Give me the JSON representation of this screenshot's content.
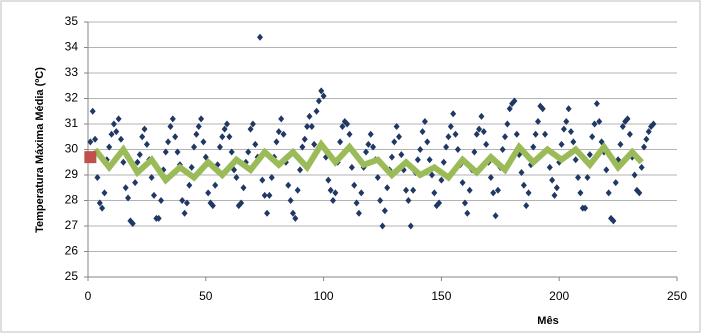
{
  "chart_data": {
    "type": "scatter",
    "ylabel": "Temperatura Máxima Média (ºC)",
    "xlabel": "Mês",
    "xlim": [
      0,
      250
    ],
    "xticks": [
      0,
      50,
      100,
      150,
      200,
      250
    ],
    "ylim": [
      25,
      35
    ],
    "yticks": [
      25,
      26,
      27,
      28,
      29,
      30,
      31,
      32,
      33,
      34,
      35
    ],
    "grid": true,
    "series": [
      {
        "color": "#1f3864",
        "style": "marker",
        "marker": "diamond",
        "x": [
          1,
          2,
          3,
          4,
          5,
          6,
          7,
          8,
          9,
          10,
          11,
          12,
          13,
          14,
          15,
          16,
          17,
          18,
          19,
          20,
          21,
          22,
          23,
          24,
          25,
          26,
          27,
          28,
          29,
          30,
          31,
          32,
          33,
          34,
          35,
          36,
          37,
          38,
          39,
          40,
          41,
          42,
          43,
          44,
          45,
          46,
          47,
          48,
          49,
          50,
          51,
          52,
          53,
          54,
          55,
          56,
          57,
          58,
          59,
          60,
          61,
          62,
          63,
          64,
          65,
          66,
          67,
          68,
          69,
          70,
          71,
          72,
          73,
          74,
          75,
          76,
          77,
          78,
          79,
          80,
          81,
          82,
          83,
          84,
          85,
          86,
          87,
          88,
          89,
          90,
          91,
          92,
          93,
          94,
          95,
          96,
          97,
          98,
          99,
          100,
          101,
          102,
          103,
          104,
          105,
          106,
          107,
          108,
          109,
          110,
          111,
          112,
          113,
          114,
          115,
          116,
          117,
          118,
          119,
          120,
          121,
          122,
          123,
          124,
          125,
          126,
          127,
          128,
          129,
          130,
          131,
          132,
          133,
          134,
          135,
          136,
          137,
          138,
          139,
          140,
          141,
          142,
          143,
          144,
          145,
          146,
          147,
          148,
          149,
          150,
          151,
          152,
          153,
          154,
          155,
          156,
          157,
          158,
          159,
          160,
          161,
          162,
          163,
          164,
          165,
          166,
          167,
          168,
          169,
          170,
          171,
          172,
          173,
          174,
          175,
          176,
          177,
          178,
          179,
          180,
          181,
          182,
          183,
          184,
          185,
          186,
          187,
          188,
          189,
          190,
          191,
          192,
          193,
          194,
          195,
          196,
          197,
          198,
          199,
          200,
          201,
          202,
          203,
          204,
          205,
          206,
          207,
          208,
          209,
          210,
          211,
          212,
          213,
          214,
          215,
          216,
          217,
          218,
          219,
          220,
          221,
          222,
          223,
          224,
          225,
          226,
          227,
          228,
          229,
          230,
          231,
          232,
          233,
          234,
          235,
          236,
          237,
          238,
          239,
          240
        ],
        "values": [
          30.3,
          31.5,
          30.4,
          28.9,
          27.9,
          27.7,
          28.3,
          29.6,
          30.1,
          30.6,
          31.0,
          30.7,
          31.2,
          30.4,
          29.5,
          28.5,
          28.1,
          27.2,
          27.1,
          28.7,
          29.5,
          29.8,
          30.5,
          30.8,
          30.2,
          29.6,
          28.9,
          28.2,
          27.3,
          27.3,
          28.0,
          29.2,
          29.9,
          30.3,
          30.9,
          31.2,
          30.5,
          29.9,
          29.4,
          28.0,
          27.5,
          27.9,
          28.6,
          29.3,
          30.1,
          30.6,
          30.9,
          31.2,
          30.3,
          29.7,
          28.3,
          27.9,
          27.8,
          28.6,
          29.4,
          30.1,
          30.5,
          30.8,
          31.0,
          30.5,
          29.9,
          29.2,
          28.9,
          27.8,
          27.9,
          28.5,
          29.5,
          29.9,
          30.8,
          31.0,
          30.2,
          29.7,
          34.4,
          28.8,
          28.2,
          27.5,
          28.2,
          28.9,
          29.7,
          30.3,
          30.7,
          31.2,
          30.6,
          29.5,
          28.6,
          28.0,
          27.5,
          27.3,
          28.4,
          29.2,
          30.1,
          30.4,
          30.9,
          31.3,
          30.9,
          30.2,
          31.5,
          31.9,
          32.3,
          32.1,
          29.7,
          28.8,
          28.4,
          28.0,
          28.3,
          29.5,
          30.3,
          30.9,
          31.1,
          31.0,
          30.6,
          29.3,
          28.6,
          27.9,
          27.5,
          28.3,
          29.3,
          29.9,
          30.2,
          30.6,
          30.1,
          29.6,
          28.9,
          28.0,
          27.0,
          27.6,
          28.5,
          29.2,
          29.7,
          30.3,
          30.9,
          30.5,
          29.8,
          29.2,
          28.4,
          28.0,
          27.0,
          28.4,
          29.1,
          29.6,
          30.0,
          30.7,
          31.1,
          30.3,
          29.6,
          29.0,
          28.3,
          27.8,
          27.9,
          28.8,
          29.5,
          30.1,
          30.5,
          30.9,
          31.4,
          30.6,
          30.0,
          29.4,
          28.7,
          27.9,
          27.5,
          28.4,
          29.2,
          29.9,
          30.6,
          30.8,
          31.3,
          30.7,
          30.2,
          29.5,
          28.9,
          28.3,
          27.4,
          28.4,
          29.3,
          30.0,
          30.5,
          31.0,
          31.6,
          31.8,
          31.9,
          30.6,
          29.8,
          29.1,
          28.6,
          27.8,
          28.3,
          29.4,
          30.1,
          30.6,
          31.1,
          31.7,
          31.6,
          30.6,
          30.0,
          29.3,
          28.8,
          28.2,
          28.5,
          29.5,
          30.2,
          30.8,
          31.1,
          31.6,
          30.7,
          30.3,
          29.6,
          28.9,
          28.3,
          27.7,
          27.7,
          28.9,
          29.8,
          30.5,
          31.0,
          31.8,
          31.1,
          30.3,
          29.9,
          29.2,
          28.3,
          27.3,
          27.2,
          28.7,
          29.6,
          30.2,
          30.9,
          31.1,
          31.2,
          30.6,
          29.7,
          29.0,
          28.4,
          28.3,
          29.3,
          30.1,
          30.4,
          30.7,
          30.9,
          31.0
        ]
      },
      {
        "color": "#9bbb59",
        "style": "line",
        "x": [
          3,
          9,
          15,
          21,
          27,
          33,
          39,
          45,
          51,
          57,
          63,
          69,
          75,
          81,
          87,
          93,
          99,
          105,
          111,
          117,
          123,
          129,
          135,
          141,
          147,
          153,
          159,
          165,
          171,
          177,
          183,
          189,
          195,
          201,
          207,
          213,
          219,
          225,
          231,
          235
        ],
        "values": [
          30.0,
          29.3,
          30.0,
          29.1,
          29.6,
          28.8,
          29.3,
          28.9,
          29.5,
          29.0,
          29.6,
          29.2,
          29.9,
          29.4,
          29.9,
          29.3,
          30.2,
          29.5,
          30.1,
          29.4,
          29.6,
          29.0,
          29.5,
          29.0,
          29.3,
          28.9,
          29.6,
          29.1,
          29.7,
          29.2,
          30.1,
          29.5,
          30.0,
          29.6,
          30.0,
          29.4,
          30.1,
          29.3,
          29.9,
          29.5
        ]
      },
      {
        "color": "#c0504d",
        "style": "marker",
        "marker": "square",
        "x": [
          1
        ],
        "values": [
          29.7
        ]
      }
    ]
  }
}
